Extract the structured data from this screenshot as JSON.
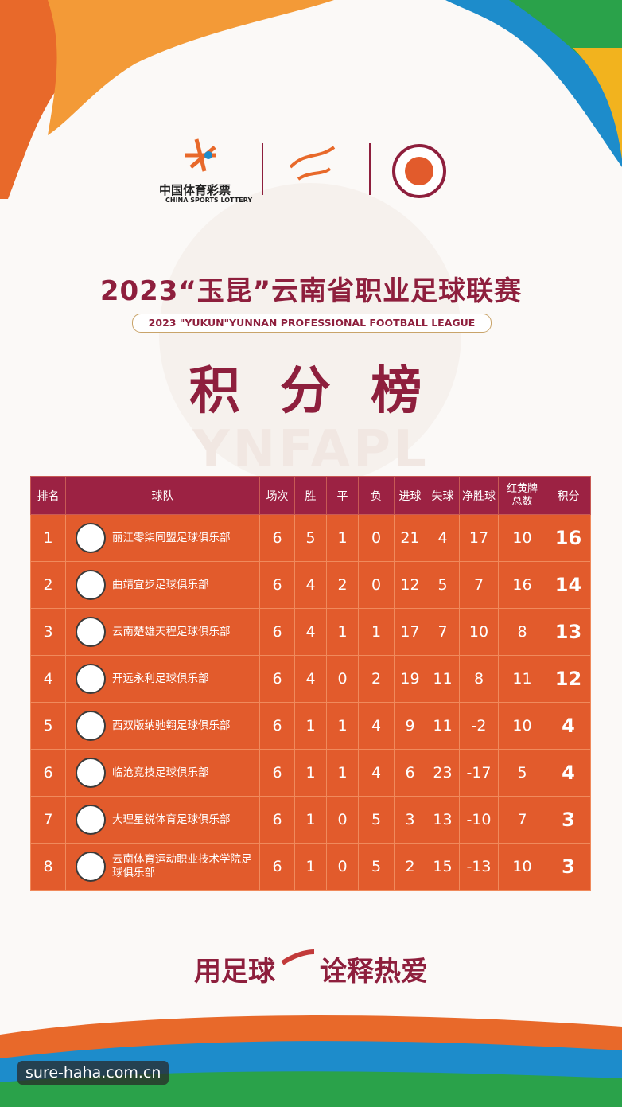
{
  "logos": {
    "lottery_cn": "中国体育彩票",
    "lottery_en": "CHINA SPORTS LOTTERY"
  },
  "watermark_bg": "YNFAPL",
  "header": {
    "title": "2023“玉昆”云南省职业足球联赛",
    "subtitle": "2023 \"YUKUN\"YUNNAN PROFESSIONAL FOOTBALL LEAGUE",
    "heading": "积 分 榜"
  },
  "table": {
    "columns": [
      "排名",
      "球队",
      "场次",
      "胜",
      "平",
      "负",
      "进球",
      "失球",
      "净胜球",
      "红黄牌总数",
      "积分"
    ],
    "rows": [
      [
        1,
        "丽江零柒同盟足球俱乐部",
        6,
        5,
        1,
        0,
        21,
        4,
        17,
        10,
        16
      ],
      [
        2,
        "曲靖宜步足球俱乐部",
        6,
        4,
        2,
        0,
        12,
        5,
        7,
        16,
        14
      ],
      [
        3,
        "云南楚雄天程足球俱乐部",
        6,
        4,
        1,
        1,
        17,
        7,
        10,
        8,
        13
      ],
      [
        4,
        "开远永利足球俱乐部",
        6,
        4,
        0,
        2,
        19,
        11,
        8,
        11,
        12
      ],
      [
        5,
        "西双版纳驰翱足球俱乐部",
        6,
        1,
        1,
        4,
        9,
        11,
        -2,
        10,
        4
      ],
      [
        6,
        "临沧竞技足球俱乐部",
        6,
        1,
        1,
        4,
        6,
        23,
        -17,
        5,
        4
      ],
      [
        7,
        "大理星锐体育足球俱乐部",
        6,
        1,
        0,
        5,
        3,
        13,
        -10,
        7,
        3
      ],
      [
        8,
        "云南体育运动职业技术学院足球俱乐部",
        6,
        1,
        0,
        5,
        2,
        15,
        -13,
        10,
        3
      ]
    ]
  },
  "slogan": {
    "left": "用足球",
    "right": "诠释热爱"
  },
  "site_watermark": "sure-haha.com.cn"
}
